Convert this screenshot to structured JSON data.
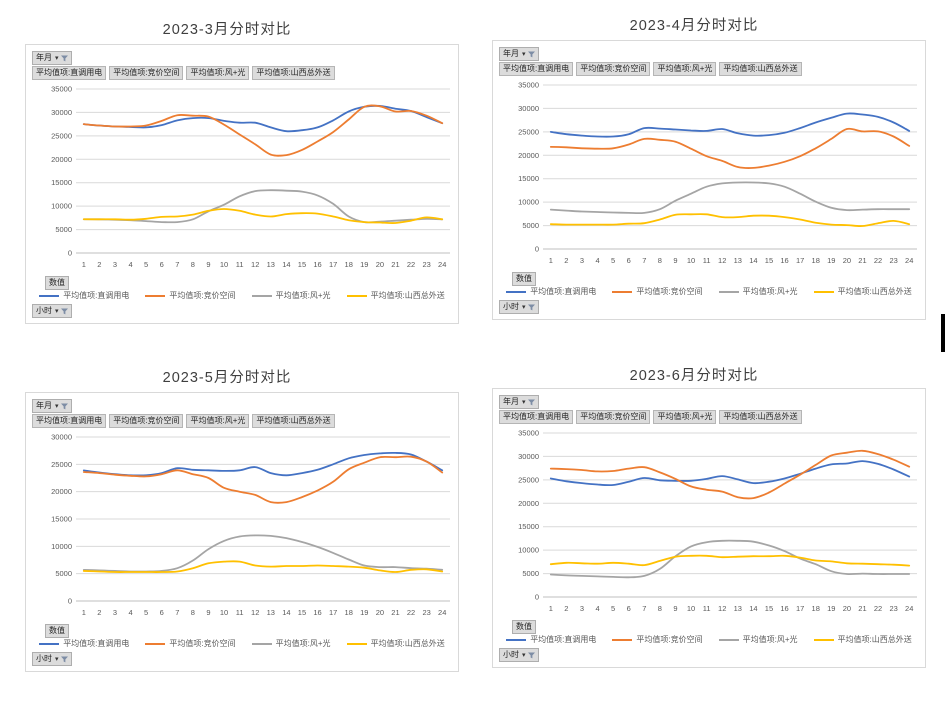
{
  "page": {
    "background": "#ffffff"
  },
  "colors": {
    "series_blue": "#4472C4",
    "series_orange": "#ED7D31",
    "series_gray": "#A5A5A5",
    "series_yellow": "#FFC000",
    "gridline": "#D9D9D9",
    "axis_line": "#BFBFBF",
    "tick_label": "#595959",
    "button_bg": "#DCDCDC",
    "title_text": "#3F3F3F"
  },
  "panels": [
    {
      "title": "2023-3月分时对比",
      "field_button": "年月",
      "value_buttons": [
        "平均值项:直调用电",
        "平均值项:竞价空间",
        "平均值项:风+光",
        "平均值项:山西总外送"
      ],
      "values_button": "数值",
      "axis_button": "小时"
    },
    {
      "title": "2023-4月分时对比",
      "field_button": "年月",
      "value_buttons": [
        "平均值项:直调用电",
        "平均值项:竞价空间",
        "平均值项:风+光",
        "平均值项:山西总外送"
      ],
      "values_button": "数值",
      "axis_button": "小时"
    },
    {
      "title": "2023-5月分时对比",
      "field_button": "年月",
      "value_buttons": [
        "平均值项:直调用电",
        "平均值项:竞价空间",
        "平均值项:风+光",
        "平均值项:山西总外送"
      ],
      "values_button": "数值",
      "axis_button": "小时"
    },
    {
      "title": "2023-6月分时对比",
      "field_button": "年月",
      "value_buttons": [
        "平均值项:直调用电",
        "平均值项:竞价空间",
        "平均值项:风+光",
        "平均值项:山西总外送"
      ],
      "values_button": "数值",
      "axis_button": "小时"
    }
  ],
  "chart_data": [
    {
      "type": "line",
      "title": "2023-3月分时对比",
      "xlabel": "小时",
      "ylabel": "",
      "x": [
        1,
        2,
        3,
        4,
        5,
        6,
        7,
        8,
        9,
        10,
        11,
        12,
        13,
        14,
        15,
        16,
        17,
        18,
        19,
        20,
        21,
        22,
        23,
        24
      ],
      "ylim": [
        0,
        35000
      ],
      "ytick_step": 5000,
      "grid": true,
      "legend_position": "bottom",
      "series": [
        {
          "name": "平均值项:直调用电",
          "color": "#4472C4",
          "values": [
            27500,
            27200,
            27000,
            26900,
            26800,
            27300,
            28300,
            28800,
            28800,
            28200,
            27800,
            27800,
            26800,
            26000,
            26200,
            26800,
            28300,
            30200,
            31200,
            31400,
            30800,
            30300,
            29000,
            27700
          ]
        },
        {
          "name": "平均值项:竞价空间",
          "color": "#ED7D31",
          "values": [
            27500,
            27200,
            27000,
            27000,
            27200,
            28200,
            29400,
            29300,
            29100,
            27400,
            25300,
            23200,
            21000,
            20900,
            22000,
            23800,
            25800,
            28500,
            31200,
            31300,
            30200,
            30300,
            29300,
            27700
          ]
        },
        {
          "name": "平均值项:风+光",
          "color": "#A5A5A5",
          "values": [
            7200,
            7200,
            7100,
            7000,
            6800,
            6600,
            6600,
            7200,
            8900,
            10300,
            12100,
            13200,
            13400,
            13300,
            13100,
            12300,
            10500,
            7800,
            6600,
            6700,
            6900,
            7100,
            7300,
            7200
          ]
        },
        {
          "name": "平均值项:山西总外送",
          "color": "#FFC000",
          "values": [
            7200,
            7200,
            7200,
            7100,
            7300,
            7700,
            7800,
            8200,
            9000,
            9400,
            9000,
            8200,
            7800,
            8300,
            8500,
            8400,
            7800,
            7000,
            6600,
            6500,
            6400,
            6900,
            7600,
            7200
          ]
        }
      ]
    },
    {
      "type": "line",
      "title": "2023-4月分时对比",
      "xlabel": "小时",
      "ylabel": "",
      "x": [
        1,
        2,
        3,
        4,
        5,
        6,
        7,
        8,
        9,
        10,
        11,
        12,
        13,
        14,
        15,
        16,
        17,
        18,
        19,
        20,
        21,
        22,
        23,
        24
      ],
      "ylim": [
        0,
        35000
      ],
      "ytick_step": 5000,
      "grid": true,
      "legend_position": "bottom",
      "series": [
        {
          "name": "平均值项:直调用电",
          "color": "#4472C4",
          "values": [
            25000,
            24500,
            24200,
            24000,
            24000,
            24500,
            25800,
            25700,
            25500,
            25300,
            25200,
            25600,
            24700,
            24200,
            24300,
            24800,
            25800,
            27000,
            28000,
            28900,
            28700,
            28200,
            27000,
            25200
          ]
        },
        {
          "name": "平均值项:竞价空间",
          "color": "#ED7D31",
          "values": [
            21800,
            21700,
            21500,
            21400,
            21500,
            22300,
            23500,
            23300,
            22900,
            21400,
            19800,
            18800,
            17500,
            17300,
            17800,
            18600,
            19800,
            21500,
            23500,
            25600,
            25100,
            25100,
            24000,
            22000
          ]
        },
        {
          "name": "平均值项:风+光",
          "color": "#A5A5A5",
          "values": [
            8400,
            8200,
            8000,
            7900,
            7800,
            7700,
            7700,
            8500,
            10300,
            11800,
            13300,
            14000,
            14200,
            14200,
            14000,
            13300,
            11800,
            10100,
            8800,
            8300,
            8400,
            8500,
            8500,
            8500
          ]
        },
        {
          "name": "平均值项:山西总外送",
          "color": "#FFC000",
          "values": [
            5300,
            5200,
            5200,
            5200,
            5200,
            5400,
            5500,
            6300,
            7300,
            7400,
            7400,
            6800,
            6800,
            7100,
            7100,
            6800,
            6300,
            5600,
            5200,
            5100,
            4900,
            5500,
            6000,
            5300
          ]
        }
      ]
    },
    {
      "type": "line",
      "title": "2023-5月分时对比",
      "xlabel": "小时",
      "ylabel": "",
      "x": [
        1,
        2,
        3,
        4,
        5,
        6,
        7,
        8,
        9,
        10,
        11,
        12,
        13,
        14,
        15,
        16,
        17,
        18,
        19,
        20,
        21,
        22,
        23,
        24
      ],
      "ylim": [
        0,
        30000
      ],
      "ytick_step": 5000,
      "grid": true,
      "legend_position": "bottom",
      "series": [
        {
          "name": "平均值项:直调用电",
          "color": "#4472C4",
          "values": [
            23900,
            23500,
            23200,
            23000,
            23000,
            23400,
            24300,
            24000,
            23900,
            23800,
            23900,
            24500,
            23400,
            23000,
            23400,
            24000,
            25000,
            26100,
            26700,
            27000,
            27100,
            26800,
            25500,
            23900
          ]
        },
        {
          "name": "平均值项:竞价空间",
          "color": "#ED7D31",
          "values": [
            23600,
            23400,
            23100,
            22900,
            22800,
            23200,
            23900,
            23200,
            22500,
            20700,
            20000,
            19400,
            18100,
            18100,
            19000,
            20200,
            21800,
            24100,
            25300,
            26300,
            26300,
            26400,
            25500,
            23500
          ]
        },
        {
          "name": "平均值项:风+光",
          "color": "#A5A5A5",
          "values": [
            5700,
            5600,
            5500,
            5400,
            5400,
            5500,
            6000,
            7400,
            9500,
            11000,
            11800,
            12000,
            11900,
            11500,
            10800,
            9900,
            8800,
            7600,
            6500,
            6200,
            6200,
            6000,
            5900,
            5700
          ]
        },
        {
          "name": "平均值项:山西总外送",
          "color": "#FFC000",
          "values": [
            5500,
            5400,
            5300,
            5300,
            5300,
            5300,
            5400,
            6000,
            6900,
            7200,
            7200,
            6500,
            6300,
            6400,
            6400,
            6500,
            6400,
            6300,
            6100,
            5600,
            5300,
            5700,
            5800,
            5400
          ]
        }
      ]
    },
    {
      "type": "line",
      "title": "2023-6月分时对比",
      "xlabel": "小时",
      "ylabel": "",
      "x": [
        1,
        2,
        3,
        4,
        5,
        6,
        7,
        8,
        9,
        10,
        11,
        12,
        13,
        14,
        15,
        16,
        17,
        18,
        19,
        20,
        21,
        22,
        23,
        24
      ],
      "ylim": [
        0,
        35000
      ],
      "ytick_step": 5000,
      "grid": true,
      "legend_position": "bottom",
      "series": [
        {
          "name": "平均值项:直调用电",
          "color": "#4472C4",
          "values": [
            25300,
            24700,
            24300,
            24000,
            23900,
            24600,
            25400,
            24900,
            24800,
            24800,
            25200,
            25800,
            25100,
            24300,
            24600,
            25300,
            26300,
            27400,
            28300,
            28500,
            29000,
            28400,
            27200,
            25700
          ]
        },
        {
          "name": "平均值项:竞价空间",
          "color": "#ED7D31",
          "values": [
            27400,
            27300,
            27100,
            26800,
            26900,
            27400,
            27700,
            26600,
            25200,
            23600,
            22900,
            22500,
            21300,
            21100,
            22300,
            24200,
            26100,
            28200,
            30200,
            30800,
            31200,
            30500,
            29300,
            27800
          ]
        },
        {
          "name": "平均值项:风+光",
          "color": "#A5A5A5",
          "values": [
            4800,
            4600,
            4500,
            4400,
            4300,
            4200,
            4500,
            6000,
            8700,
            10800,
            11700,
            12000,
            12000,
            11800,
            11000,
            9800,
            8200,
            7000,
            5500,
            4900,
            5000,
            4900,
            4900,
            4900
          ]
        },
        {
          "name": "平均值项:山西总外送",
          "color": "#FFC000",
          "values": [
            7000,
            7300,
            7200,
            7100,
            7300,
            7100,
            6800,
            7700,
            8600,
            8800,
            8800,
            8500,
            8600,
            8700,
            8700,
            8800,
            8400,
            7800,
            7600,
            7200,
            7100,
            7000,
            6900,
            6700
          ]
        }
      ]
    }
  ]
}
